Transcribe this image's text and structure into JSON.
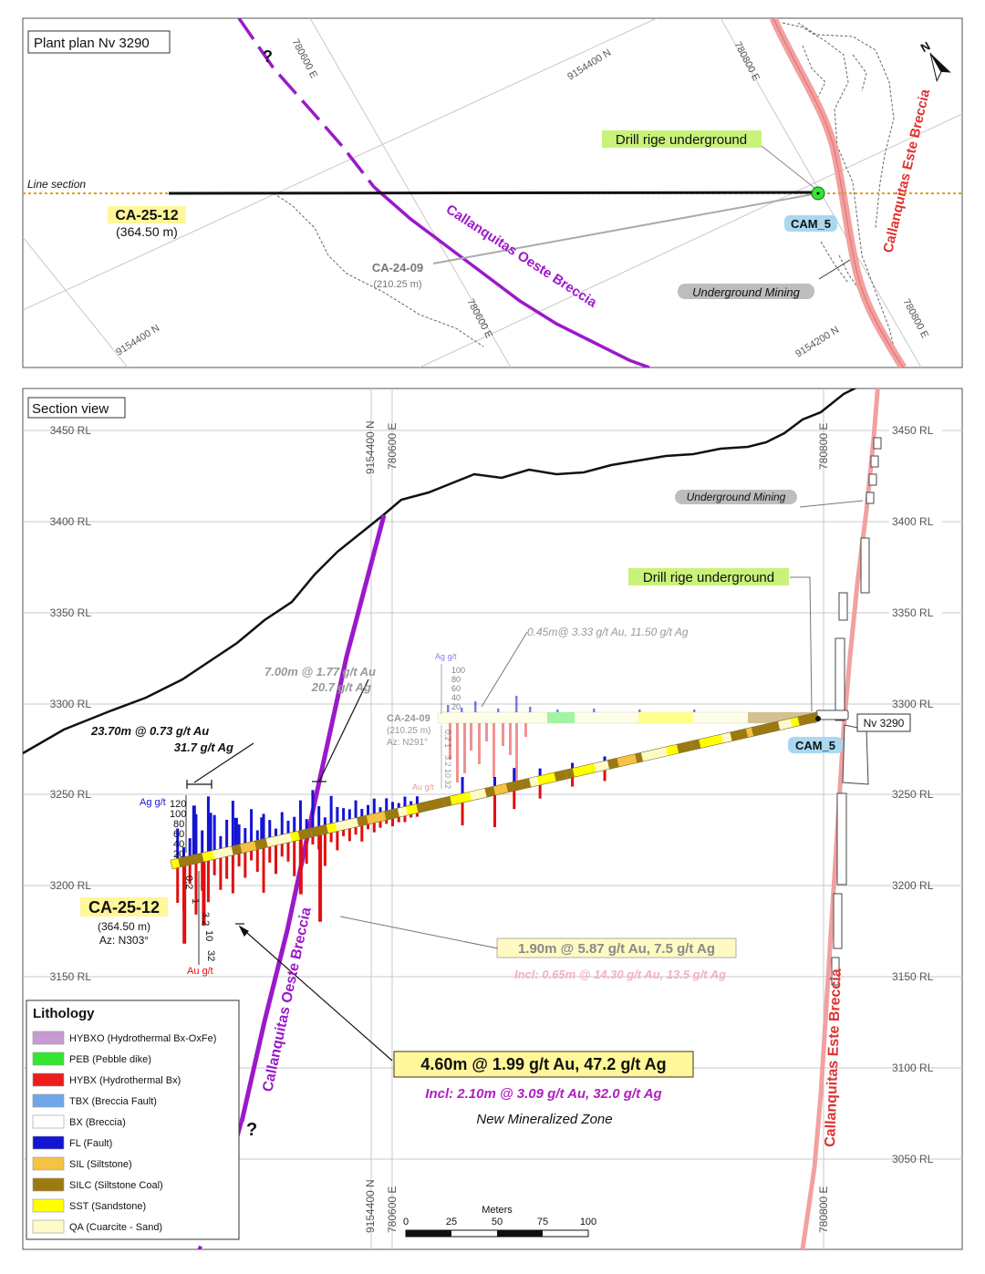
{
  "plan": {
    "title": "Plant plan Nv 3290",
    "line_section_label": "Line section",
    "hole_id": "CA-25-12",
    "hole_length": "(364.50 m)",
    "drill_rig_label": "Drill rige underground",
    "station_label": "CAM_5",
    "older_hole_id": "CA-24-09",
    "older_hole_length": "(210.25 m)",
    "underground_label": "Underground Mining",
    "west_breccia": "Callanquitas Oeste Breccia",
    "east_breccia": "Callanquitas Este Breccia",
    "question_mark": "?",
    "grid_labels": [
      "780600 E",
      "9154400 N",
      "780800 E",
      "9154400 N",
      "780600 E",
      "9154200 N",
      "780800 E"
    ]
  },
  "section": {
    "title": "Section view",
    "rl_labels": [
      "3450 RL",
      "3400 RL",
      "3350 RL",
      "3300 RL",
      "3250 RL",
      "3200 RL",
      "3150 RL",
      "3100 RL",
      "3050 RL"
    ],
    "top_grid_labels": [
      "9154400 N",
      "780600 E",
      "780800 E"
    ],
    "bottom_grid_labels": [
      "9154400 N",
      "780600 E",
      "780800 E"
    ],
    "underground_label": "Underground Mining",
    "drill_rig_label": "Drill rige underground",
    "station_label": "CAM_5",
    "level_label": "Nv 3290",
    "hole_id": "CA-25-12",
    "hole_length": "(364.50 m)",
    "hole_azimuth": "Az: N303°",
    "older_hole_id": "CA-24-09",
    "older_hole_length": "(210.25 m)",
    "older_hole_azimuth": "Az: N291°",
    "west_breccia": "Callanquitas Oeste Breccia",
    "east_breccia": "Callanquitas Este Breccia",
    "question_mark": "?",
    "ag_axis_label": "Ag g/t",
    "au_axis_label": "Au g/t",
    "ag_ticks": [
      "120",
      "100",
      "80",
      "60",
      "40",
      "20"
    ],
    "au_ticks": [
      "0.2",
      "1",
      "3.2",
      "10",
      "32"
    ],
    "ag_ticks_small": [
      "100",
      "80",
      "60",
      "40",
      "20"
    ],
    "au_ticks_small": [
      "0.2",
      "1",
      "3.2",
      "10",
      "32"
    ],
    "intercepts": {
      "i1_line1": "23.70m @ 0.73 g/t Au",
      "i1_line2": "31.7 g/t Ag",
      "i2_line1": "7.00m @ 1.77 g/t Au",
      "i2_line2": "20.7 g/t Ag",
      "i3": "0.45m@ 3.33 g/t Au, 11.50 g/t Ag",
      "i4": "1.90m @ 5.87 g/t Au, 7.5 g/t Ag",
      "i4_incl": "Incl: 0.65m @ 14.30 g/t Au, 13.5 g/t Ag",
      "i5": "4.60m @ 1.99 g/t Au, 47.2 g/t Ag",
      "i5_incl": "Incl: 2.10m @ 3.09 g/t Au, 32.0 g/t Ag",
      "new_zone": "New Mineralized Zone"
    },
    "scale": {
      "title": "Meters",
      "ticks": [
        "0",
        "25",
        "50",
        "75",
        "100"
      ]
    }
  },
  "legend": {
    "title": "Lithology",
    "items": [
      {
        "label": "HYBXO (Hydrothermal Bx-OxFe)",
        "color": "#c79bd0"
      },
      {
        "label": "PEB (Pebble dike)",
        "color": "#33e633"
      },
      {
        "label": "HYBX (Hydrothermal Bx)",
        "color": "#ee1c1c"
      },
      {
        "label": "TBX (Breccia Fault)",
        "color": "#6fa8e8"
      },
      {
        "label": "BX (Breccia)",
        "color": "#ffffff"
      },
      {
        "label": "FL (Fault)",
        "color": "#1414d4"
      },
      {
        "label": "SIL (Siltstone)",
        "color": "#f5c242"
      },
      {
        "label": "SILC (Siltstone Coal)",
        "color": "#9c7a10"
      },
      {
        "label": "SST (Sandstone)",
        "color": "#ffff00"
      },
      {
        "label": "QA (Cuarcite - Sand)",
        "color": "#fdfbc8"
      }
    ]
  },
  "colors": {
    "west_breccia": "#9b19c9",
    "east_breccia": "#f2a0a0",
    "highlight_yellow": "#fff79a",
    "highlight_green": "#c9f27a",
    "highlight_blue": "#a9d8f0",
    "ag_bars": "#1414d4",
    "au_bars": "#e01010",
    "section_line": "#e0a020"
  }
}
